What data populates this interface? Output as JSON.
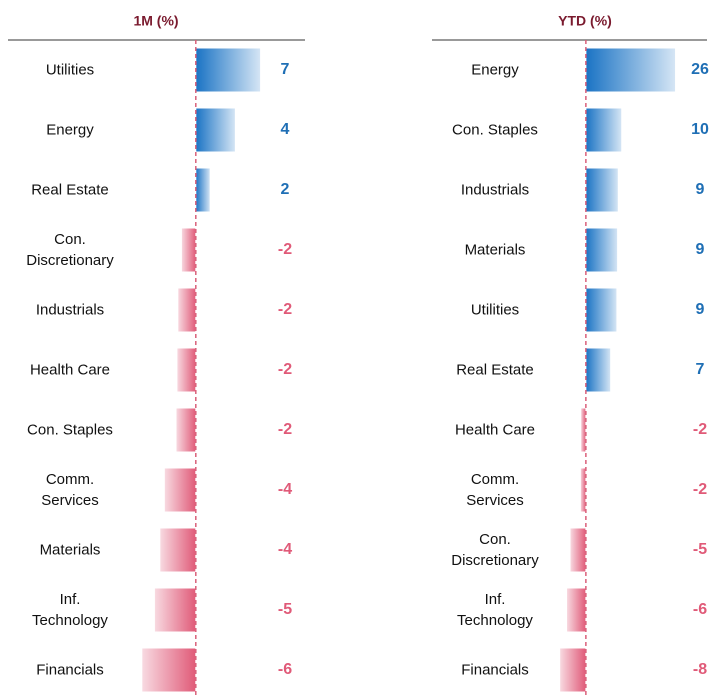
{
  "chart_data": [
    {
      "type": "bar",
      "orientation": "horizontal",
      "title": "1M (%)",
      "categories": [
        "Utilities",
        "Energy",
        "Real Estate",
        "Con.\nDiscretionary",
        "Industrials",
        "Health Care",
        "Con. Staples",
        "Comm.\nServices",
        "Materials",
        "Inf.\nTechnology",
        "Financials"
      ],
      "values": [
        7.2,
        4.4,
        1.6,
        -1.6,
        -2.0,
        -2.1,
        -2.2,
        -3.5,
        -4.0,
        -4.6,
        -6.0
      ],
      "value_labels": [
        "7",
        "4",
        "2",
        "-2",
        "-2",
        "-2",
        "-2",
        "-4",
        "-4",
        "-5",
        "-6"
      ],
      "xlim": [
        -6.2,
        7.8
      ],
      "positive_color": "#1a73c4",
      "negative_color": "#e05a78"
    },
    {
      "type": "bar",
      "orientation": "horizontal",
      "title": "YTD (%)",
      "categories": [
        "Energy",
        "Con. Staples",
        "Industrials",
        "Materials",
        "Utilities",
        "Real Estate",
        "Health Care",
        "Comm.\nServices",
        "Con.\nDiscretionary",
        "Inf.\nTechnology",
        "Financials"
      ],
      "values": [
        26,
        10.4,
        9.4,
        9.2,
        9.0,
        7.2,
        -1.5,
        -1.6,
        -4.6,
        -5.6,
        -7.6
      ],
      "value_labels": [
        "26",
        "10",
        "9",
        "9",
        "9",
        "7",
        "-2",
        "-2",
        "-5",
        "-6",
        "-8"
      ],
      "xlim": [
        -7.5,
        27
      ],
      "positive_color": "#1a73c4",
      "negative_color": "#e05a78"
    }
  ]
}
